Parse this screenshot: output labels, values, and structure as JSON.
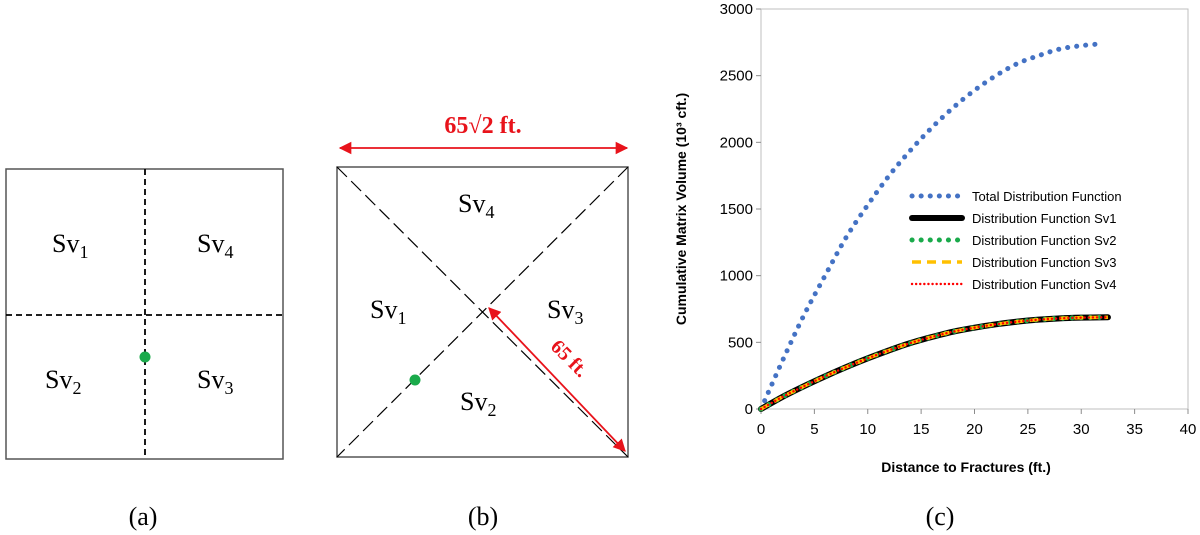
{
  "panel_a": {
    "region_labels": [
      {
        "base": "Sv",
        "sub": "1"
      },
      {
        "base": "Sv",
        "sub": "4"
      },
      {
        "base": "Sv",
        "sub": "2"
      },
      {
        "base": "Sv",
        "sub": "3"
      }
    ],
    "caption": "(a)",
    "marker_color": "#1aaa4b",
    "line_color": "#000000"
  },
  "panel_b": {
    "region_labels": [
      {
        "base": "Sv",
        "sub": "4"
      },
      {
        "base": "Sv",
        "sub": "1"
      },
      {
        "base": "Sv",
        "sub": "3"
      },
      {
        "base": "Sv",
        "sub": "2"
      }
    ],
    "width_label": "65√2 ft.",
    "half_diagonal_label": "65 ft.",
    "caption": "(b)",
    "annotation_color": "#e8131b",
    "marker_color": "#1aaa4b"
  },
  "panel_c": {
    "caption": "(c)"
  },
  "chart_data": {
    "type": "line",
    "xlabel": "Distance to Fractures (ft.)",
    "ylabel": "Cumulative Matrix Volume (10³ cft.)",
    "xlim": [
      0,
      40
    ],
    "ylim": [
      0,
      3000
    ],
    "xticks": [
      "0",
      "5",
      "10",
      "15",
      "20",
      "25",
      "30",
      "35",
      "40"
    ],
    "yticks": [
      "0",
      "500",
      "1000",
      "1500",
      "2000",
      "2500",
      "3000"
    ],
    "grid": false,
    "legend_position": "center-right",
    "series": [
      {
        "name": "Total Distribution Function",
        "color": "#4472c4",
        "style": "dotted-large",
        "points": [
          [
            0,
            0
          ],
          [
            2,
            360
          ],
          [
            4,
            700
          ],
          [
            6,
            1000
          ],
          [
            8,
            1290
          ],
          [
            10,
            1530
          ],
          [
            12,
            1750
          ],
          [
            14,
            1940
          ],
          [
            16,
            2110
          ],
          [
            18,
            2260
          ],
          [
            20,
            2390
          ],
          [
            22,
            2500
          ],
          [
            24,
            2590
          ],
          [
            26,
            2650
          ],
          [
            28,
            2700
          ],
          [
            30,
            2725
          ],
          [
            32,
            2740
          ]
        ]
      },
      {
        "name": "Distribution Function Sv1",
        "color": "#000000",
        "style": "solid-thick",
        "points": [
          [
            0,
            0
          ],
          [
            2,
            90
          ],
          [
            4,
            170
          ],
          [
            6,
            245
          ],
          [
            8,
            315
          ],
          [
            10,
            380
          ],
          [
            12,
            440
          ],
          [
            14,
            495
          ],
          [
            16,
            540
          ],
          [
            18,
            580
          ],
          [
            20,
            610
          ],
          [
            22,
            635
          ],
          [
            24,
            655
          ],
          [
            26,
            670
          ],
          [
            28,
            680
          ],
          [
            30,
            685
          ],
          [
            32.5,
            688
          ]
        ]
      },
      {
        "name": "Distribution Function Sv2",
        "color": "#1aaa4b",
        "style": "dotted-large",
        "points": [
          [
            0,
            0
          ],
          [
            2,
            90
          ],
          [
            4,
            170
          ],
          [
            6,
            245
          ],
          [
            8,
            315
          ],
          [
            10,
            380
          ],
          [
            12,
            440
          ],
          [
            14,
            495
          ],
          [
            16,
            540
          ],
          [
            18,
            580
          ],
          [
            20,
            610
          ],
          [
            22,
            635
          ],
          [
            24,
            655
          ],
          [
            26,
            670
          ],
          [
            28,
            680
          ],
          [
            30,
            685
          ],
          [
            32.5,
            688
          ]
        ]
      },
      {
        "name": "Distribution Function Sv3",
        "color": "#ffc000",
        "style": "dashed",
        "points": [
          [
            0,
            0
          ],
          [
            2,
            90
          ],
          [
            4,
            170
          ],
          [
            6,
            245
          ],
          [
            8,
            315
          ],
          [
            10,
            380
          ],
          [
            12,
            440
          ],
          [
            14,
            495
          ],
          [
            16,
            540
          ],
          [
            18,
            580
          ],
          [
            20,
            610
          ],
          [
            22,
            635
          ],
          [
            24,
            655
          ],
          [
            26,
            670
          ],
          [
            28,
            680
          ],
          [
            30,
            685
          ],
          [
            32.5,
            688
          ]
        ]
      },
      {
        "name": "Distribution Function Sv4",
        "color": "#ff0000",
        "style": "dotted-small",
        "points": [
          [
            0,
            0
          ],
          [
            2,
            90
          ],
          [
            4,
            170
          ],
          [
            6,
            245
          ],
          [
            8,
            315
          ],
          [
            10,
            380
          ],
          [
            12,
            440
          ],
          [
            14,
            495
          ],
          [
            16,
            540
          ],
          [
            18,
            580
          ],
          [
            20,
            610
          ],
          [
            22,
            635
          ],
          [
            24,
            655
          ],
          [
            26,
            670
          ],
          [
            28,
            680
          ],
          [
            30,
            685
          ],
          [
            32.5,
            688
          ]
        ]
      }
    ]
  }
}
